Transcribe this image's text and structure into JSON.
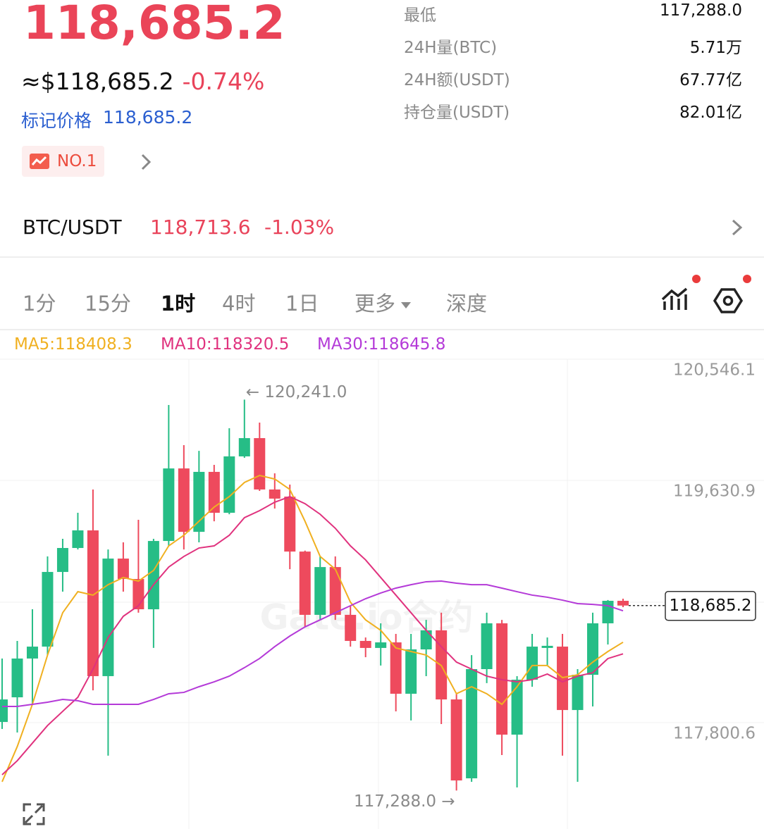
{
  "header": {
    "price": "118,685.2",
    "usd_price": "≈$118,685.2",
    "change": "-0.74%",
    "mark_label": "标记价格",
    "mark_price": "118,685.2",
    "badge": "NO.1"
  },
  "stats": [
    {
      "label": "最低",
      "value": "117,288.0"
    },
    {
      "label": "24H量(BTC)",
      "value": "5.71万"
    },
    {
      "label": "24H额(USDT)",
      "value": "67.77亿"
    },
    {
      "label": "持仓量(USDT)",
      "value": "82.01亿"
    }
  ],
  "spot": {
    "pair": "BTC/USDT",
    "price": "118,713.6",
    "change": "-1.03%"
  },
  "tabs": [
    "1分",
    "15分",
    "1时",
    "4时",
    "1日",
    "更多",
    "深度"
  ],
  "active_tab": 2,
  "chart_data": {
    "type": "candlestick",
    "watermark": "Gate.io合约",
    "categories": [
      null,
      null,
      null,
      null,
      null,
      null,
      null,
      null,
      null,
      null,
      null,
      null,
      null,
      null,
      null,
      null,
      null,
      null,
      null,
      null,
      null,
      null,
      null,
      null,
      null,
      null,
      null,
      null,
      null,
      null,
      null,
      null,
      null,
      null,
      null,
      null,
      null,
      null,
      null,
      null,
      null,
      null
    ],
    "open": [
      117806,
      117992,
      118285,
      118375,
      118939,
      119120,
      119253,
      118152,
      119040,
      118886,
      118657,
      119173,
      119721,
      119242,
      119695,
      119386,
      119812,
      119950,
      119562,
      119508,
      119093,
      118615,
      118976,
      118615,
      118418,
      118365,
      118407,
      118019,
      118354,
      118498,
      117976,
      117380,
      118205,
      118551,
      117710,
      118125,
      118365,
      118375,
      117896,
      118162,
      118551,
      118721
    ],
    "high": [
      118285,
      118418,
      118657,
      119056,
      119189,
      119386,
      119562,
      119109,
      119163,
      119333,
      119189,
      120200,
      119897,
      119854,
      119748,
      120025,
      120241.0,
      120067,
      119684,
      119599,
      119100,
      119056,
      119056,
      118684,
      118444,
      118551,
      118471,
      118471,
      118577,
      118631,
      118019,
      118311,
      118631,
      118577,
      118152,
      118471,
      118444,
      118471,
      118205,
      118631,
      118727,
      118737
    ],
    "low": [
      117753,
      117726,
      117939,
      118311,
      118790,
      119109,
      118045,
      117551,
      118790,
      118631,
      118365,
      119136,
      119109,
      119163,
      119322,
      119375,
      119801,
      119551,
      119418,
      118960,
      118524,
      118577,
      118577,
      118375,
      118295,
      118232,
      117886,
      117817,
      118152,
      117790,
      117288.0,
      117354,
      118099,
      117556,
      117311,
      118072,
      118232,
      117551,
      117354,
      117923,
      118391,
      118673
    ],
    "close": [
      117976,
      118285,
      118375,
      118939,
      119120,
      119253,
      118152,
      119040,
      118886,
      118657,
      119173,
      119721,
      119242,
      119695,
      119386,
      119812,
      119950,
      119562,
      119493,
      119093,
      118615,
      118976,
      118615,
      118418,
      118365,
      118407,
      118019,
      118354,
      118498,
      117976,
      117364,
      118205,
      118551,
      117710,
      118125,
      118375,
      118381,
      117896,
      118162,
      118551,
      118721,
      118685.2
    ],
    "up_color": "#26bd86",
    "down_color": "#ee4a5d",
    "series": [
      {
        "name": "MA5:118408.3",
        "color": "#f0b020",
        "values": [
          117354,
          117620,
          117939,
          118311,
          118631,
          118790,
          118764,
          118843,
          118897,
          118870,
          118950,
          119136,
          119216,
          119322,
          119429,
          119508,
          119615,
          119668,
          119641,
          119562,
          119322,
          119056,
          118960,
          118710,
          118577,
          118498,
          118365,
          118338,
          118311,
          118232,
          118019,
          118072,
          118019,
          117939,
          118072,
          118232,
          118232,
          118141,
          118162,
          118258,
          118338,
          118408.3
        ]
      },
      {
        "name": "MA10:118320.5",
        "color": "#e0327e",
        "values": [
          117407,
          117513,
          117646,
          117779,
          117886,
          117992,
          118205,
          118444,
          118604,
          118684,
          118843,
          118976,
          119056,
          119120,
          119136,
          119216,
          119349,
          119402,
          119466,
          119508,
          119455,
          119375,
          119269,
          119136,
          119030,
          118897,
          118764,
          118631,
          118498,
          118375,
          118258,
          118205,
          118152,
          118125,
          118109,
          118125,
          118168,
          118109,
          118152,
          118178,
          118285,
          118320.5
        ]
      },
      {
        "name": "MA30:118645.8",
        "color": "#b43ad8",
        "values": [
          117923,
          117923,
          117939,
          117955,
          117976,
          117966,
          117939,
          117939,
          117939,
          117939,
          117976,
          118019,
          118029,
          118072,
          118109,
          118152,
          118216,
          118285,
          118375,
          118455,
          118524,
          118577,
          118631,
          118684,
          118737,
          118780,
          118817,
          118843,
          118865,
          118870,
          118854,
          118843,
          118843,
          118817,
          118790,
          118764,
          118748,
          118726,
          118700,
          118694,
          118684,
          118645.8
        ]
      }
    ],
    "ylim": [
      116997.2,
      120546.1
    ],
    "yticks": [
      {
        "value": 120546.1,
        "label": "120,546.1"
      },
      {
        "value": 119630.9,
        "label": "119,630.9"
      },
      {
        "value": 117800.6,
        "label": "117,800.6"
      }
    ],
    "grid": true,
    "high_label": "← 120,241.0",
    "low_label": "117,288.0 →",
    "last_price": {
      "value": 118685.2,
      "label": "118,685.2"
    }
  }
}
